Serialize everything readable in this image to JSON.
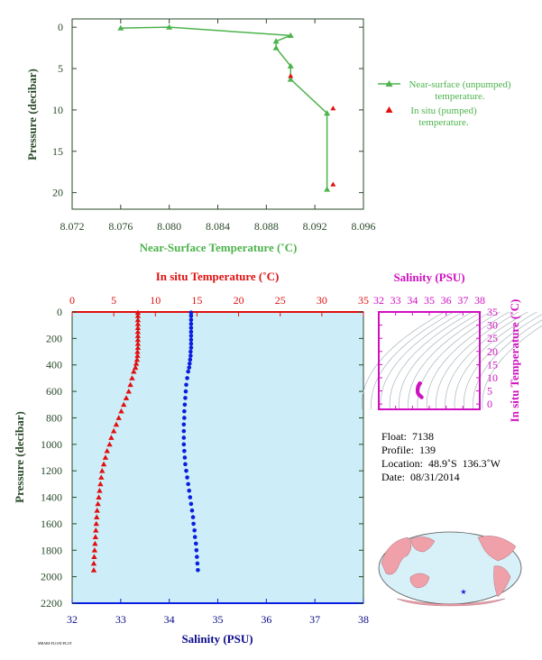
{
  "colors": {
    "green": "#4db34d",
    "red": "#e01010",
    "blue": "#0a1ee0",
    "navy": "#0a0a8a",
    "magenta": "#d010c0",
    "axis_text": "#2a4a2a",
    "panel_bg": "#cdeef8",
    "land": "#f0a0a8",
    "ocean": "#d8f0f8"
  },
  "chart_data": [
    {
      "type": "line",
      "xlabel": "Near-Surface Temperature (˚C)",
      "ylabel": "Pressure (decibar)",
      "xlim": [
        8.072,
        8.096
      ],
      "ylim": [
        22,
        -1
      ],
      "x_ticks": [
        "8.072",
        "8.076",
        "8.080",
        "8.084",
        "8.088",
        "8.092",
        "8.096"
      ],
      "x_tick_values": [
        8.072,
        8.076,
        8.08,
        8.084,
        8.088,
        8.092,
        8.096
      ],
      "y_ticks": [
        "0",
        "5",
        "10",
        "15",
        "20"
      ],
      "y_tick_values": [
        0,
        5,
        10,
        15,
        20
      ],
      "legend_position": "right",
      "series": [
        {
          "name": "Near-surface (unpumped) temperature.",
          "marker": "triangle-line",
          "points": [
            [
              8.076,
              0.1
            ],
            [
              8.08,
              0.0
            ],
            [
              8.09,
              1.0
            ],
            [
              8.0888,
              1.7
            ],
            [
              8.0888,
              2.5
            ],
            [
              8.09,
              4.7
            ],
            [
              8.09,
              6.3
            ],
            [
              8.093,
              10.4
            ],
            [
              8.093,
              19.6
            ]
          ]
        },
        {
          "name": "In situ (pumped) temperature.",
          "marker": "triangle",
          "points": [
            [
              8.09,
              5.9
            ],
            [
              8.0935,
              9.8
            ],
            [
              8.0935,
              19.0
            ]
          ]
        }
      ]
    },
    {
      "type": "scatter",
      "ylabel": "Pressure (decibar)",
      "top_xlabel": "In situ Temperature (˚C)",
      "bottom_xlabel": "Salinity (PSU)",
      "ylim": [
        2200,
        0
      ],
      "temp_lim": [
        0,
        35
      ],
      "sal_lim": [
        32,
        38
      ],
      "y_ticks": [
        "0",
        "200",
        "400",
        "600",
        "800",
        "1000",
        "1200",
        "1400",
        "1600",
        "1800",
        "2000",
        "2200"
      ],
      "y_tick_values": [
        0,
        200,
        400,
        600,
        800,
        1000,
        1200,
        1400,
        1600,
        1800,
        2000,
        2200
      ],
      "temp_ticks": [
        "0",
        "5",
        "10",
        "15",
        "20",
        "25",
        "30",
        "35"
      ],
      "temp_tick_values": [
        0,
        5,
        10,
        15,
        20,
        25,
        30,
        35
      ],
      "sal_ticks": [
        "32",
        "33",
        "34",
        "35",
        "36",
        "37",
        "38"
      ],
      "sal_tick_values": [
        32,
        33,
        34,
        35,
        36,
        37,
        38
      ],
      "series": [
        {
          "quantity": "temperature",
          "marker": "triangle",
          "points": [
            [
              7.9,
              5
            ],
            [
              7.9,
              30
            ],
            [
              7.9,
              60
            ],
            [
              7.9,
              90
            ],
            [
              7.9,
              120
            ],
            [
              7.9,
              150
            ],
            [
              7.9,
              180
            ],
            [
              7.9,
              210
            ],
            [
              7.9,
              240
            ],
            [
              7.9,
              270
            ],
            [
              7.85,
              300
            ],
            [
              7.85,
              330
            ],
            [
              7.8,
              360
            ],
            [
              7.7,
              390
            ],
            [
              7.6,
              420
            ],
            [
              7.4,
              450
            ],
            [
              7.2,
              500
            ],
            [
              7.0,
              550
            ],
            [
              6.8,
              600
            ],
            [
              6.5,
              650
            ],
            [
              6.2,
              700
            ],
            [
              5.9,
              750
            ],
            [
              5.6,
              800
            ],
            [
              5.3,
              850
            ],
            [
              5.0,
              900
            ],
            [
              4.7,
              950
            ],
            [
              4.5,
              1000
            ],
            [
              4.2,
              1050
            ],
            [
              4.0,
              1100
            ],
            [
              3.8,
              1150
            ],
            [
              3.6,
              1200
            ],
            [
              3.5,
              1250
            ],
            [
              3.4,
              1300
            ],
            [
              3.3,
              1350
            ],
            [
              3.2,
              1400
            ],
            [
              3.1,
              1450
            ],
            [
              3.0,
              1500
            ],
            [
              2.95,
              1550
            ],
            [
              2.9,
              1600
            ],
            [
              2.85,
              1650
            ],
            [
              2.8,
              1700
            ],
            [
              2.75,
              1750
            ],
            [
              2.7,
              1800
            ],
            [
              2.65,
              1850
            ],
            [
              2.6,
              1900
            ],
            [
              2.6,
              1950
            ]
          ]
        },
        {
          "quantity": "salinity",
          "marker": "dot",
          "points": [
            [
              34.45,
              5
            ],
            [
              34.45,
              30
            ],
            [
              34.45,
              60
            ],
            [
              34.45,
              90
            ],
            [
              34.45,
              120
            ],
            [
              34.45,
              150
            ],
            [
              34.45,
              180
            ],
            [
              34.45,
              210
            ],
            [
              34.45,
              240
            ],
            [
              34.45,
              270
            ],
            [
              34.44,
              300
            ],
            [
              34.44,
              330
            ],
            [
              34.43,
              360
            ],
            [
              34.42,
              390
            ],
            [
              34.41,
              420
            ],
            [
              34.39,
              450
            ],
            [
              34.37,
              500
            ],
            [
              34.35,
              550
            ],
            [
              34.34,
              600
            ],
            [
              34.33,
              650
            ],
            [
              34.32,
              700
            ],
            [
              34.31,
              750
            ],
            [
              34.31,
              800
            ],
            [
              34.3,
              850
            ],
            [
              34.3,
              900
            ],
            [
              34.3,
              950
            ],
            [
              34.3,
              1000
            ],
            [
              34.31,
              1050
            ],
            [
              34.32,
              1100
            ],
            [
              34.33,
              1150
            ],
            [
              34.35,
              1200
            ],
            [
              34.37,
              1250
            ],
            [
              34.39,
              1300
            ],
            [
              34.41,
              1350
            ],
            [
              34.43,
              1400
            ],
            [
              34.45,
              1450
            ],
            [
              34.47,
              1500
            ],
            [
              34.49,
              1550
            ],
            [
              34.5,
              1600
            ],
            [
              34.52,
              1650
            ],
            [
              34.53,
              1700
            ],
            [
              34.55,
              1750
            ],
            [
              34.56,
              1800
            ],
            [
              34.57,
              1850
            ],
            [
              34.58,
              1900
            ],
            [
              34.59,
              1950
            ]
          ]
        }
      ]
    },
    {
      "type": "scatter",
      "top_xlabel": "Salinity (PSU)",
      "ylabel": "In situ Temperature (˚C)",
      "xlim": [
        32,
        38
      ],
      "ylim": [
        -2,
        35
      ],
      "x_ticks": [
        "32",
        "33",
        "34",
        "35",
        "36",
        "37",
        "38"
      ],
      "x_tick_values": [
        32,
        33,
        34,
        35,
        36,
        37,
        38
      ],
      "y_ticks": [
        "0",
        "5",
        "10",
        "15",
        "20",
        "25",
        "30",
        "35"
      ],
      "y_tick_values": [
        0,
        5,
        10,
        15,
        20,
        25,
        30,
        35
      ],
      "grid": "density contours",
      "points": [
        [
          34.55,
          2.6
        ],
        [
          34.5,
          2.9
        ],
        [
          34.45,
          3.2
        ],
        [
          34.38,
          3.6
        ],
        [
          34.32,
          4.2
        ],
        [
          34.3,
          5.0
        ],
        [
          34.31,
          5.9
        ],
        [
          34.34,
          6.8
        ],
        [
          34.39,
          7.4
        ],
        [
          34.43,
          7.8
        ],
        [
          34.45,
          7.9
        ]
      ]
    }
  ],
  "info": {
    "float": "Float:  7138",
    "profile": "Profile:  139",
    "location": "Location:  48.9˚S  136.3˚W",
    "date": "Date:  08/31/2014"
  },
  "map": {
    "marker": "★"
  },
  "footer_code": "MBARI-FLOAT-PLOT"
}
